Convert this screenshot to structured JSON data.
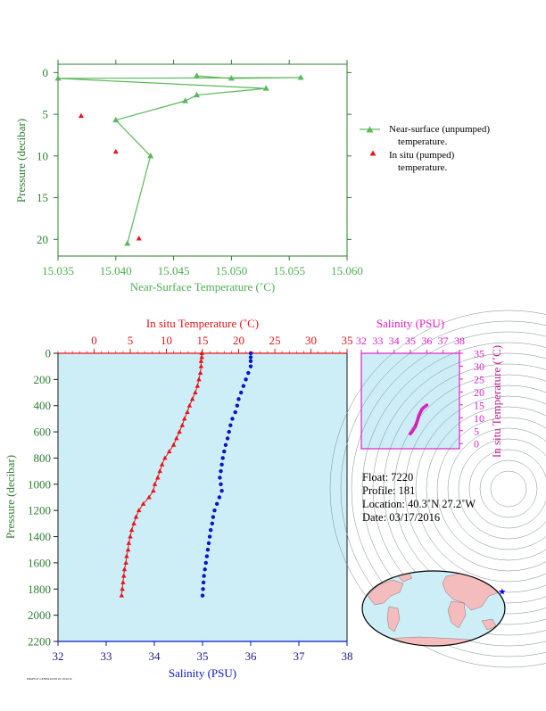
{
  "colors": {
    "green": "#5bb85b",
    "green_text": "#4caf50",
    "axis_green": "#2e7d32",
    "red": "#e8141a",
    "blue": "#0a14c8",
    "magenta": "#e020c8",
    "purple": "#c02090",
    "navy": "#1a1a8c",
    "plot_bg": "#cdeef7"
  },
  "chart_data": [
    {
      "type": "line",
      "xlabel": "Near-Surface Temperature (˚C)",
      "ylabel": "Pressure (decibar)",
      "xlim": [
        15.035,
        15.06
      ],
      "ylim": [
        22,
        -1
      ],
      "xticks": [
        "15.035",
        "15.040",
        "15.045",
        "15.050",
        "15.055",
        "15.060"
      ],
      "yticks": [
        "0",
        "5",
        "10",
        "15",
        "20"
      ],
      "legend_position": "right",
      "series": [
        {
          "name": "Near-surface (unpumped) temperature.",
          "marker": "triangle",
          "line": true,
          "points": [
            [
              15.047,
              0.4
            ],
            [
              15.05,
              0.7
            ],
            [
              15.056,
              0.6
            ],
            [
              15.035,
              0.7
            ],
            [
              15.053,
              1.9
            ],
            [
              15.047,
              2.7
            ],
            [
              15.046,
              3.4
            ],
            [
              15.04,
              5.7
            ],
            [
              15.043,
              10.0
            ],
            [
              15.041,
              20.5
            ]
          ]
        },
        {
          "name": "In situ (pumped) temperature.",
          "marker": "triangle",
          "line": false,
          "points": [
            [
              15.037,
              5.2
            ],
            [
              15.04,
              9.5
            ],
            [
              15.042,
              19.9
            ]
          ]
        }
      ]
    },
    {
      "type": "scatter",
      "ylabel": "Pressure (decibar)",
      "ylim": [
        2200,
        0
      ],
      "yticks": [
        "0",
        "200",
        "400",
        "600",
        "800",
        "1000",
        "1200",
        "1400",
        "1600",
        "1800",
        "2000",
        "2200"
      ],
      "top_axis": {
        "label": "In situ Temperature (˚C)",
        "range": [
          -5,
          35
        ],
        "ticks": [
          "0",
          "5",
          "10",
          "15",
          "20",
          "25",
          "30",
          "35"
        ]
      },
      "bottom_axis": {
        "label": "Salinity (PSU)",
        "range": [
          32,
          38
        ],
        "ticks": [
          "32",
          "33",
          "34",
          "35",
          "36",
          "37",
          "38"
        ]
      },
      "temperature_profile": [
        [
          0,
          14.9
        ],
        [
          30,
          14.9
        ],
        [
          60,
          14.8
        ],
        [
          100,
          14.8
        ],
        [
          150,
          14.7
        ],
        [
          200,
          14.5
        ],
        [
          250,
          14.3
        ],
        [
          300,
          14.0
        ],
        [
          350,
          13.6
        ],
        [
          400,
          13.2
        ],
        [
          450,
          12.9
        ],
        [
          500,
          12.5
        ],
        [
          550,
          12.2
        ],
        [
          600,
          11.8
        ],
        [
          650,
          11.4
        ],
        [
          700,
          11.0
        ],
        [
          750,
          10.4
        ],
        [
          800,
          9.8
        ],
        [
          850,
          9.4
        ],
        [
          900,
          9.1
        ],
        [
          950,
          8.8
        ],
        [
          1000,
          8.4
        ],
        [
          1050,
          8.2
        ],
        [
          1100,
          7.6
        ],
        [
          1150,
          6.8
        ],
        [
          1200,
          6.2
        ],
        [
          1250,
          5.8
        ],
        [
          1300,
          5.5
        ],
        [
          1350,
          5.2
        ],
        [
          1400,
          5.0
        ],
        [
          1450,
          4.8
        ],
        [
          1500,
          4.7
        ],
        [
          1550,
          4.5
        ],
        [
          1600,
          4.4
        ],
        [
          1650,
          4.2
        ],
        [
          1700,
          4.1
        ],
        [
          1750,
          4.0
        ],
        [
          1800,
          3.9
        ],
        [
          1850,
          3.8
        ]
      ],
      "salinity_profile": [
        [
          0,
          36.0
        ],
        [
          30,
          36.0
        ],
        [
          60,
          36.0
        ],
        [
          100,
          36.0
        ],
        [
          150,
          35.95
        ],
        [
          200,
          35.9
        ],
        [
          250,
          35.85
        ],
        [
          300,
          35.8
        ],
        [
          350,
          35.75
        ],
        [
          400,
          35.72
        ],
        [
          450,
          35.68
        ],
        [
          500,
          35.62
        ],
        [
          550,
          35.58
        ],
        [
          600,
          35.55
        ],
        [
          650,
          35.52
        ],
        [
          700,
          35.48
        ],
        [
          750,
          35.45
        ],
        [
          800,
          35.42
        ],
        [
          850,
          35.4
        ],
        [
          900,
          35.38
        ],
        [
          950,
          35.36
        ],
        [
          1000,
          35.38
        ],
        [
          1050,
          35.4
        ],
        [
          1100,
          35.35
        ],
        [
          1150,
          35.3
        ],
        [
          1200,
          35.25
        ],
        [
          1250,
          35.22
        ],
        [
          1300,
          35.2
        ],
        [
          1350,
          35.17
        ],
        [
          1400,
          35.15
        ],
        [
          1450,
          35.13
        ],
        [
          1500,
          35.11
        ],
        [
          1550,
          35.09
        ],
        [
          1600,
          35.07
        ],
        [
          1650,
          35.05
        ],
        [
          1700,
          35.03
        ],
        [
          1750,
          35.02
        ],
        [
          1800,
          35.01
        ],
        [
          1850,
          35.0
        ]
      ]
    },
    {
      "type": "scatter",
      "title": "Salinity (PSU)",
      "xlabel": "Salinity (PSU)",
      "ylabel": "In situ Temperature (˚C)",
      "xlim": [
        32,
        38
      ],
      "ylim": [
        -2,
        35
      ],
      "xticks": [
        "32",
        "33",
        "34",
        "35",
        "36",
        "37",
        "38"
      ],
      "yticks": [
        "0",
        "5",
        "10",
        "15",
        "20",
        "25",
        "30",
        "35"
      ],
      "points": [
        [
          35.0,
          3.8
        ],
        [
          35.1,
          4.6
        ],
        [
          35.2,
          5.6
        ],
        [
          35.3,
          6.5
        ],
        [
          35.38,
          8.0
        ],
        [
          35.45,
          9.3
        ],
        [
          35.52,
          10.8
        ],
        [
          35.6,
          12.0
        ],
        [
          35.7,
          13.2
        ],
        [
          35.8,
          13.9
        ],
        [
          35.95,
          14.6
        ],
        [
          36.0,
          14.9
        ]
      ]
    }
  ],
  "legend": {
    "unpumped_line1": "Near-surface (unpumped)",
    "unpumped_line2": "temperature.",
    "pumped_line1": "In situ (pumped)",
    "pumped_line2": "temperature."
  },
  "info": {
    "float": "Float:  7220",
    "profile": "Profile:  181",
    "location": "Location:  40.3˚N  27.2˚W",
    "date": "Date:  03/17/2016"
  },
  "map": {
    "marker_lat": 40.3,
    "marker_lon": -27.2,
    "marker_color": "#0000ff",
    "land_color": "#f4bcbc",
    "ocean_color": "#cdeef7"
  },
  "footer_text": "PROFILE GENERATED 03/18/2016"
}
